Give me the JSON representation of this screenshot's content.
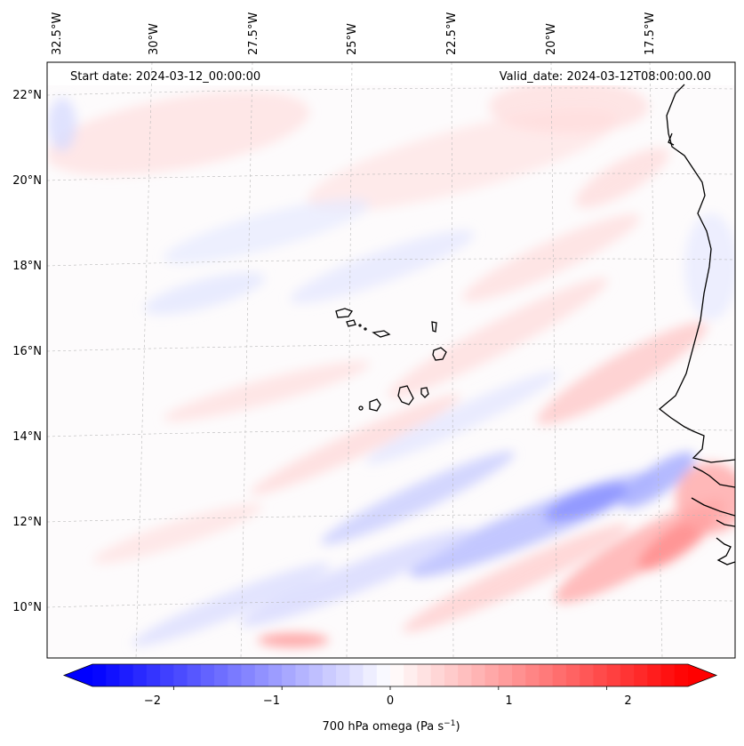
{
  "map": {
    "start_label": "Start date: 2024-03-12_00:00:00",
    "valid_label": "Valid_date: 2024-03-12T08:00:00.00",
    "lon_labels": [
      "32.5°W",
      "30°W",
      "27.5°W",
      "25°W",
      "22.5°W",
      "20°W",
      "17.5°W"
    ],
    "lat_labels": [
      "22°N",
      "20°N",
      "18°N",
      "16°N",
      "14°N",
      "12°N",
      "10°N"
    ]
  },
  "colorbar": {
    "ticks": [
      "−2",
      "−1",
      "0",
      "1",
      "2"
    ],
    "label": "700 hPa omega (Pa s",
    "label_exp": "−1",
    "label_close": ")",
    "min": -2.75,
    "max": 2.75,
    "colors": {
      "negative": "#0000ff",
      "zero": "#ffffff",
      "positive": "#ff0000"
    }
  }
}
